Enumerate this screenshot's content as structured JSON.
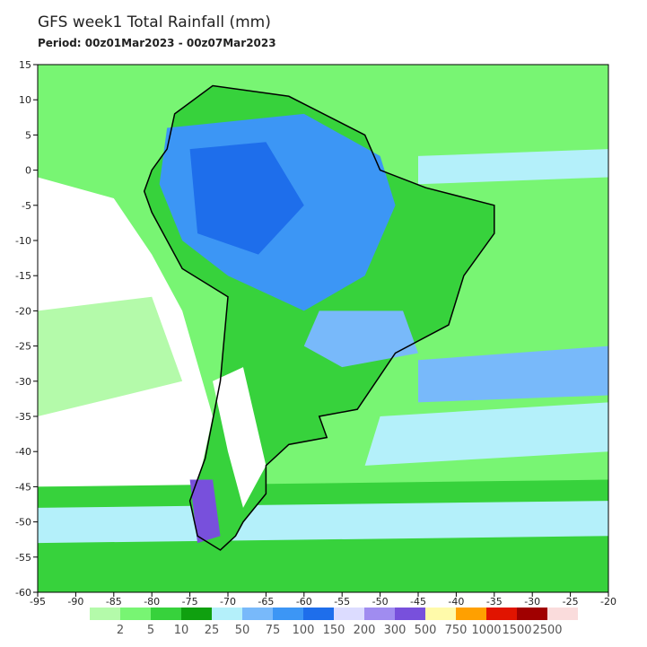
{
  "header": {
    "title": "GFS week1 Total Rainfall (mm)",
    "subtitle": "Period: 00z01Mar2023 - 00z07Mar2023"
  },
  "map": {
    "xlim": [
      -95,
      -20
    ],
    "ylim": [
      -60,
      15
    ],
    "xticks": [
      -95,
      -90,
      -85,
      -80,
      -75,
      -70,
      -65,
      -60,
      -55,
      -50,
      -45,
      -40,
      -35,
      -30,
      -25,
      -20
    ],
    "yticks": [
      15,
      10,
      5,
      0,
      -5,
      -10,
      -15,
      -20,
      -25,
      -30,
      -35,
      -40,
      -45,
      -50,
      -55,
      -60
    ]
  },
  "colorbar": {
    "levels": [
      2,
      5,
      10,
      25,
      50,
      75,
      100,
      150,
      200,
      300,
      500,
      750,
      1000,
      1500,
      2500
    ],
    "colors": [
      "#b4faaa",
      "#78f573",
      "#37d23c",
      "#0fa00f",
      "#b4f0fa",
      "#78b9fa",
      "#3c96f5",
      "#1e6eeb",
      "#dcdcff",
      "#a08cf0",
      "#7850dc",
      "#fffaaa",
      "#ffa000",
      "#e11400",
      "#a00000",
      "#fadcdc"
    ]
  }
}
